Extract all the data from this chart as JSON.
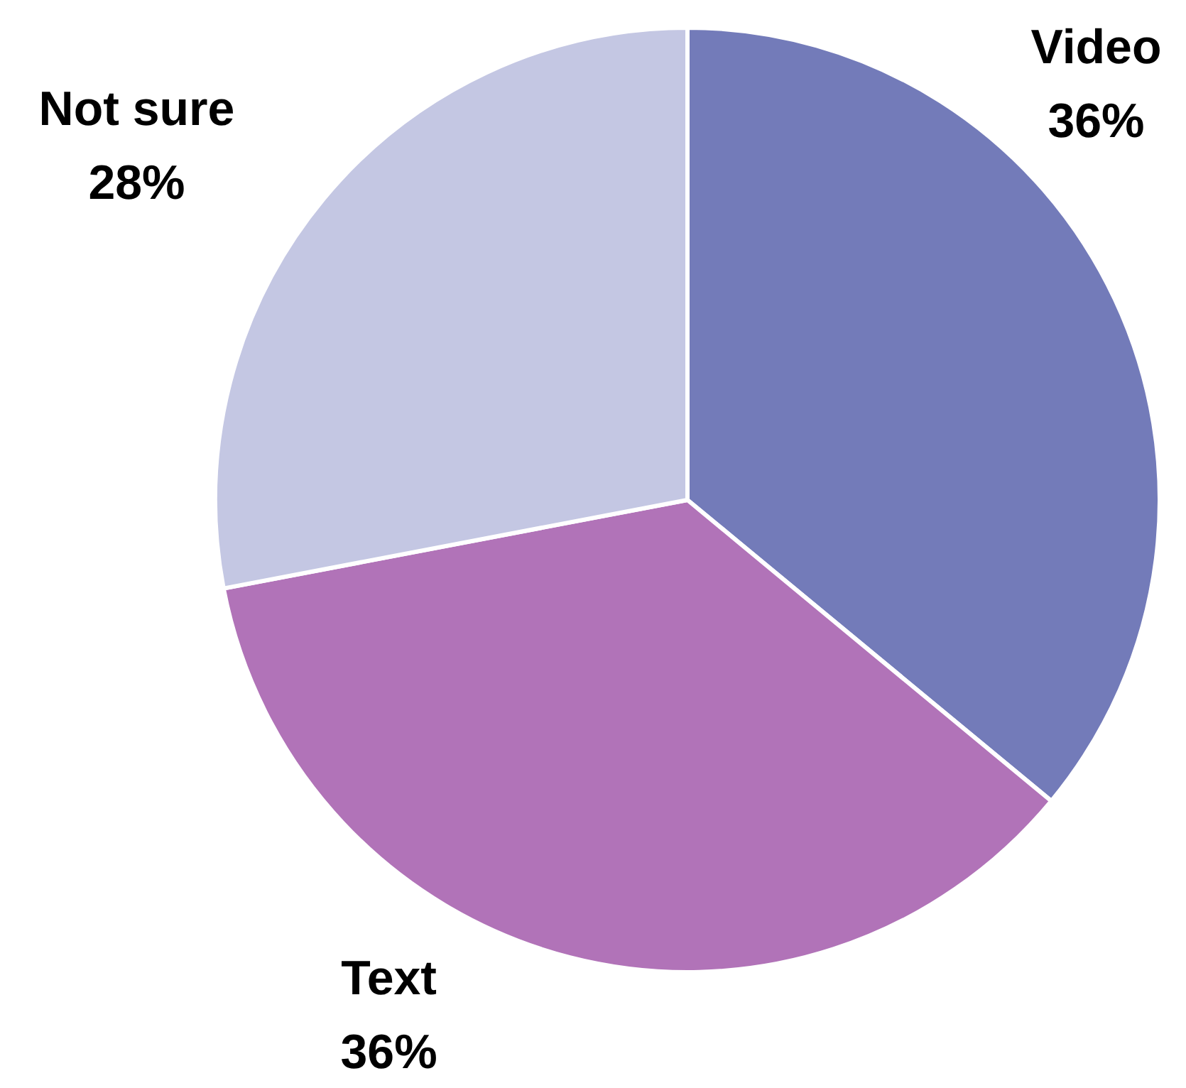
{
  "chart_data": {
    "type": "pie",
    "categories": [
      "Video",
      "Text",
      "Not sure"
    ],
    "values": [
      36,
      36,
      28
    ],
    "colors": [
      "#737bb9",
      "#b173b8",
      "#c4c7e3"
    ],
    "value_labels": [
      "36%",
      "36%",
      "28%"
    ],
    "legend": false
  }
}
